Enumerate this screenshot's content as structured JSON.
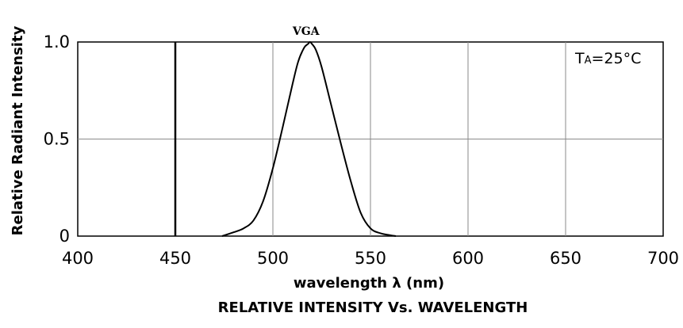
{
  "chart_data": {
    "type": "line",
    "title": "RELATIVE INTENSITY Vs. WAVELENGTH",
    "xlabel": "wavelength λ (nm)",
    "ylabel": "Relative Radiant Intensity",
    "xlim": [
      400,
      700
    ],
    "ylim": [
      0,
      1.0
    ],
    "x_ticks": [
      "400",
      "450",
      "500",
      "550",
      "600",
      "650",
      "700"
    ],
    "y_ticks": [
      "0",
      "0.5",
      "1.0"
    ],
    "grid": true,
    "annotation": {
      "main": "T",
      "sub": "A",
      "rest": "=25°C"
    },
    "series": [
      {
        "name": "VGA",
        "x": [
          474,
          480,
          485,
          490,
          495,
          500,
          505,
          510,
          513,
          516,
          518,
          519,
          520,
          522,
          525,
          530,
          535,
          540,
          545,
          550,
          555,
          560,
          563
        ],
        "y": [
          0.0,
          0.02,
          0.04,
          0.08,
          0.18,
          0.35,
          0.56,
          0.78,
          0.9,
          0.97,
          0.99,
          1.0,
          0.99,
          0.96,
          0.87,
          0.67,
          0.47,
          0.28,
          0.12,
          0.04,
          0.015,
          0.005,
          0.0
        ]
      }
    ]
  }
}
